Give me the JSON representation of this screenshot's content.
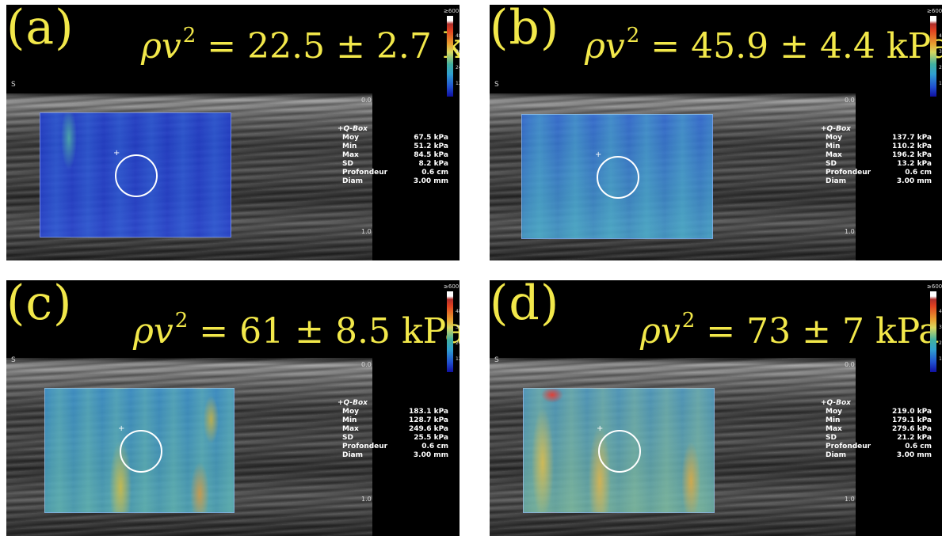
{
  "panels": [
    {
      "label": "(a)",
      "formula": {
        "value": "22.5",
        "pm": "2.7",
        "unit": "kPa"
      },
      "qbox": {
        "title": "+Q-Box",
        "rows": [
          {
            "label": "Moy",
            "value": "67.5 kPa"
          },
          {
            "label": "Min",
            "value": "51.2 kPa"
          },
          {
            "label": "Max",
            "value": "84.5 kPa"
          },
          {
            "label": "SD",
            "value": "8.2 kPa"
          },
          {
            "label": "Profondeur",
            "value": "0.6 cm"
          },
          {
            "label": "Diam",
            "value": "3.00 mm"
          }
        ]
      },
      "colorbar": {
        "top": "≥600 kPa",
        "ticks": [
          "480",
          "360",
          "240",
          "120"
        ]
      },
      "depth": {
        "top": "0.0",
        "bottom": "1.0"
      },
      "side": "S"
    },
    {
      "label": "(b)",
      "formula": {
        "value": "45.9",
        "pm": "4.4",
        "unit": "kPa"
      },
      "qbox": {
        "title": "+Q-Box",
        "rows": [
          {
            "label": "Moy",
            "value": "137.7 kPa"
          },
          {
            "label": "Min",
            "value": "110.2 kPa"
          },
          {
            "label": "Max",
            "value": "196.2 kPa"
          },
          {
            "label": "SD",
            "value": "13.2 kPa"
          },
          {
            "label": "Profondeur",
            "value": "0.6 cm"
          },
          {
            "label": "Diam",
            "value": "3.00 mm"
          }
        ]
      },
      "colorbar": {
        "top": "≥600 kPa",
        "ticks": [
          "48",
          "36",
          "24",
          "12"
        ]
      },
      "depth": {
        "top": "0.0",
        "bottom": "1.0"
      },
      "side": "S"
    },
    {
      "label": "(c)",
      "formula": {
        "value": "61",
        "pm": "8.5",
        "unit": "kPa"
      },
      "qbox": {
        "title": "+Q-Box",
        "rows": [
          {
            "label": "Moy",
            "value": "183.1 kPa"
          },
          {
            "label": "Min",
            "value": "128.7 kPa"
          },
          {
            "label": "Max",
            "value": "249.6 kPa"
          },
          {
            "label": "SD",
            "value": "25.5 kPa"
          },
          {
            "label": "Profondeur",
            "value": "0.6 cm"
          },
          {
            "label": "Diam",
            "value": "3.00 mm"
          }
        ]
      },
      "colorbar": {
        "top": "≥600 kPa",
        "ticks": [
          "48",
          "36",
          "24",
          "12"
        ]
      },
      "depth": {
        "top": "0.0",
        "bottom": "1.0"
      },
      "side": "S"
    },
    {
      "label": "(d)",
      "formula": {
        "value": "73",
        "pm": "7",
        "unit": "kPa"
      },
      "qbox": {
        "title": "+Q-Box",
        "rows": [
          {
            "label": "Moy",
            "value": "219.0 kPa"
          },
          {
            "label": "Min",
            "value": "179.1 kPa"
          },
          {
            "label": "Max",
            "value": "279.6 kPa"
          },
          {
            "label": "SD",
            "value": "21.2 kPa"
          },
          {
            "label": "Profondeur",
            "value": "0.6 cm"
          },
          {
            "label": "Diam",
            "value": "3.00 mm"
          }
        ]
      },
      "colorbar": {
        "top": "≥600 kPa",
        "ticks": [
          "4",
          "3",
          "2",
          "1"
        ]
      },
      "depth": {
        "top": "0.0",
        "bottom": "1.0"
      },
      "side": "S"
    }
  ],
  "formula_text": {
    "lhs_rho": "ρ",
    "lhs_v": "v",
    "exp": "2",
    "eq": " = ",
    "pm_sign": " ± "
  },
  "colors": {
    "annotation": "#f2e84a",
    "background": "#000000"
  }
}
